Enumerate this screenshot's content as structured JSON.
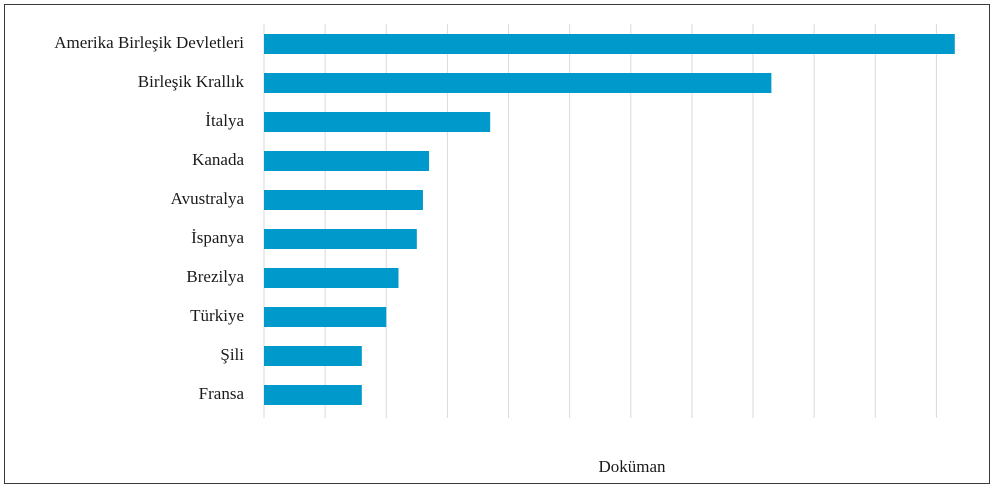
{
  "chart_data": {
    "type": "bar",
    "orientation": "horizontal",
    "categories": [
      "Amerika Birleşik Devletleri",
      "Birleşik Krallık",
      "İtalya",
      "Kanada",
      "Avustralya",
      "İspanya",
      "Brezilya",
      "Türkiye",
      "Şili",
      "Fransa"
    ],
    "values": [
      113,
      83,
      37,
      27,
      26,
      25,
      22,
      20,
      16,
      16
    ],
    "title": "",
    "xlabel": "Doküman",
    "ylabel": "",
    "xlim": [
      0,
      115
    ],
    "grid": "vertical",
    "bar_color": "#0099cc",
    "grid_color": "#d9d9d9"
  }
}
